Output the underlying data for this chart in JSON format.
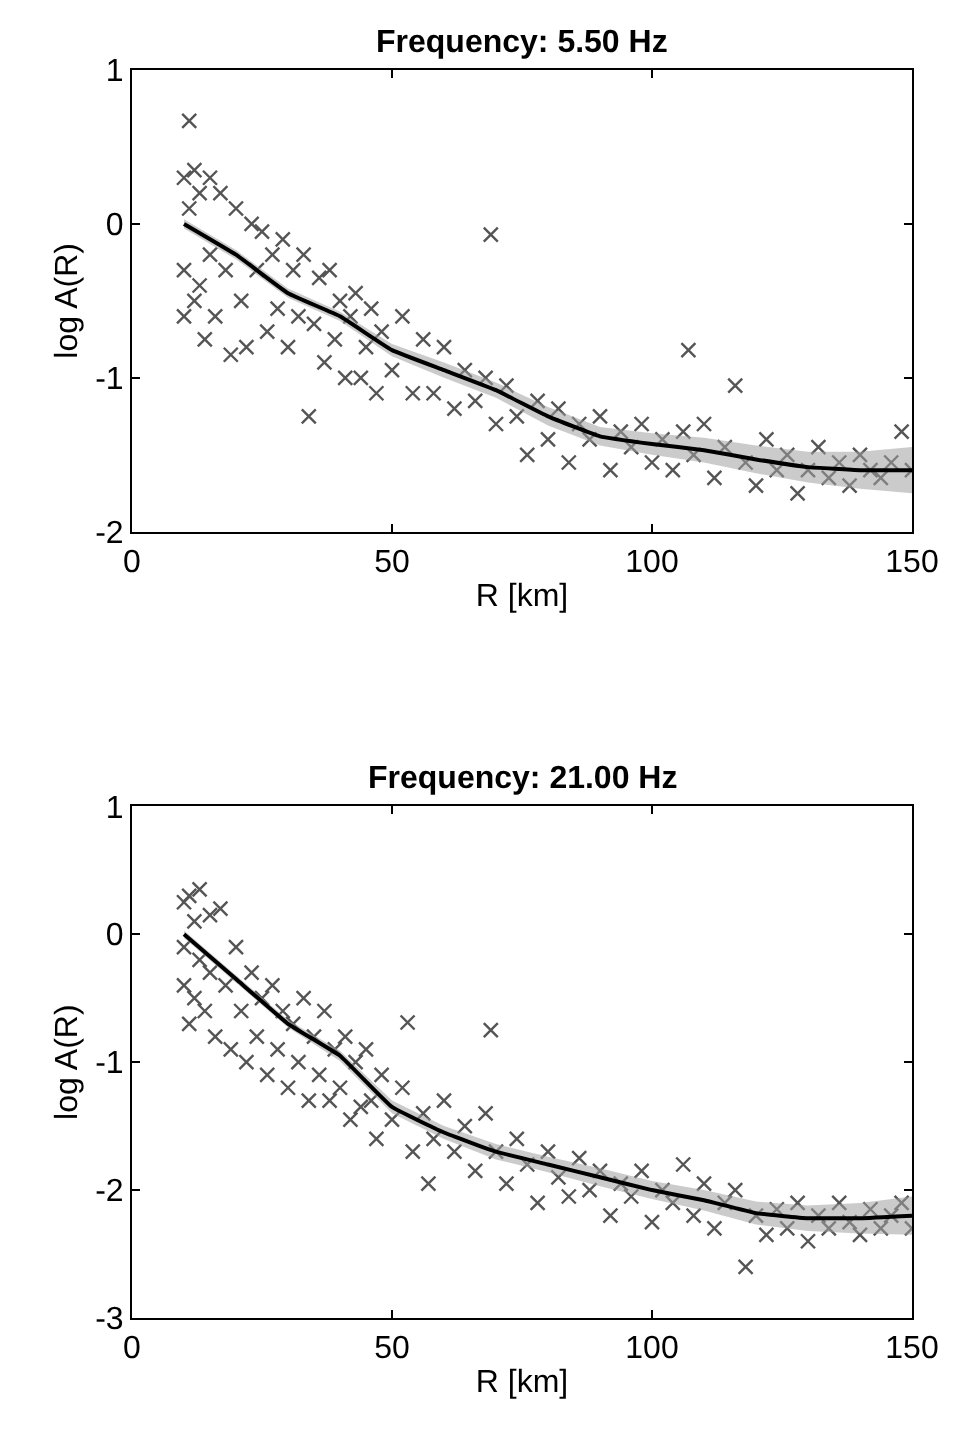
{
  "chart_data": [
    {
      "type": "scatter",
      "title": "Frequency: 5.50 Hz",
      "xlabel": "R [km]",
      "ylabel": "log A(R)",
      "xlim": [
        0,
        150
      ],
      "ylim": [
        -2,
        1
      ],
      "xticks": [
        0,
        50,
        100,
        150
      ],
      "yticks": [
        -2,
        -1,
        0,
        1
      ],
      "series": [
        {
          "marker": "cross",
          "color": "#555555",
          "x": [
            10,
            10,
            10,
            11,
            11,
            12,
            12,
            13,
            13,
            14,
            15,
            15,
            16,
            17,
            18,
            19,
            20,
            21,
            22,
            23,
            24,
            25,
            26,
            27,
            28,
            29,
            30,
            31,
            32,
            33,
            34,
            35,
            36,
            37,
            38,
            39,
            40,
            41,
            42,
            43,
            44,
            45,
            46,
            47,
            48,
            50,
            52,
            54,
            56,
            58,
            60,
            62,
            64,
            66,
            68,
            69,
            70,
            72,
            74,
            76,
            78,
            80,
            82,
            84,
            86,
            88,
            90,
            92,
            94,
            96,
            98,
            100,
            102,
            104,
            106,
            107,
            108,
            110,
            112,
            114,
            116,
            118,
            120,
            122,
            124,
            126,
            128,
            130,
            132,
            134,
            136,
            138,
            140,
            142,
            144,
            146,
            148,
            150
          ],
          "values": [
            0.3,
            -0.6,
            -0.3,
            0.67,
            0.1,
            0.35,
            -0.5,
            0.2,
            -0.4,
            -0.75,
            0.3,
            -0.2,
            -0.6,
            0.2,
            -0.3,
            -0.85,
            0.1,
            -0.5,
            -0.8,
            0.0,
            -0.3,
            -0.05,
            -0.7,
            -0.2,
            -0.55,
            -0.1,
            -0.8,
            -0.3,
            -0.6,
            -0.2,
            -1.25,
            -0.65,
            -0.35,
            -0.9,
            -0.3,
            -0.75,
            -0.5,
            -1.0,
            -0.6,
            -0.45,
            -1.0,
            -0.8,
            -0.55,
            -1.1,
            -0.7,
            -0.95,
            -0.6,
            -1.1,
            -0.75,
            -1.1,
            -0.8,
            -1.2,
            -0.95,
            -1.15,
            -1.0,
            -0.07,
            -1.3,
            -1.05,
            -1.25,
            -1.5,
            -1.15,
            -1.4,
            -1.2,
            -1.55,
            -1.3,
            -1.4,
            -1.25,
            -1.6,
            -1.35,
            -1.45,
            -1.3,
            -1.55,
            -1.4,
            -1.6,
            -1.35,
            -0.82,
            -1.5,
            -1.3,
            -1.65,
            -1.45,
            -1.05,
            -1.55,
            -1.7,
            -1.4,
            -1.6,
            -1.5,
            -1.75,
            -1.6,
            -1.45,
            -1.65,
            -1.55,
            -1.7,
            -1.5,
            -1.6,
            -1.65,
            -1.55,
            -1.35,
            -1.6
          ]
        },
        {
          "type": "line",
          "marker": "none",
          "line_style": "solid",
          "color": "#000000",
          "x": [
            10,
            20,
            30,
            40,
            50,
            60,
            70,
            80,
            90,
            100,
            110,
            120,
            130,
            140,
            150
          ],
          "values": [
            0,
            -0.2,
            -0.45,
            -0.6,
            -0.82,
            -0.95,
            -1.08,
            -1.25,
            -1.38,
            -1.43,
            -1.47,
            -1.53,
            -1.58,
            -1.6,
            -1.6
          ],
          "lower": [
            -0.03,
            -0.23,
            -0.48,
            -0.63,
            -0.86,
            -1.0,
            -1.13,
            -1.31,
            -1.44,
            -1.5,
            -1.55,
            -1.62,
            -1.68,
            -1.72,
            -1.75
          ],
          "upper": [
            0.03,
            -0.17,
            -0.42,
            -0.57,
            -0.78,
            -0.9,
            -1.03,
            -1.19,
            -1.32,
            -1.36,
            -1.39,
            -1.44,
            -1.48,
            -1.48,
            -1.45
          ]
        }
      ]
    },
    {
      "type": "scatter",
      "title": "Frequency: 21.00 Hz",
      "xlabel": "R [km]",
      "ylabel": "log A(R)",
      "xlim": [
        0,
        150
      ],
      "ylim": [
        -3,
        1
      ],
      "xticks": [
        0,
        50,
        100,
        150
      ],
      "yticks": [
        -3,
        -2,
        -1,
        0,
        1
      ],
      "series": [
        {
          "marker": "cross",
          "color": "#555555",
          "x": [
            10,
            10,
            10,
            11,
            11,
            12,
            12,
            13,
            13,
            14,
            15,
            15,
            16,
            17,
            18,
            19,
            20,
            21,
            22,
            23,
            24,
            25,
            26,
            27,
            28,
            29,
            30,
            31,
            32,
            33,
            34,
            35,
            36,
            37,
            38,
            39,
            40,
            41,
            42,
            43,
            44,
            45,
            46,
            47,
            48,
            50,
            52,
            53,
            54,
            56,
            57,
            58,
            60,
            62,
            64,
            66,
            68,
            69,
            70,
            72,
            74,
            76,
            78,
            80,
            82,
            84,
            86,
            88,
            90,
            92,
            94,
            96,
            98,
            100,
            102,
            104,
            106,
            108,
            110,
            112,
            114,
            116,
            118,
            120,
            122,
            124,
            126,
            128,
            130,
            132,
            134,
            136,
            138,
            140,
            142,
            144,
            146,
            148,
            150
          ],
          "values": [
            0.25,
            -0.4,
            -0.1,
            0.3,
            -0.7,
            0.1,
            -0.5,
            0.35,
            -0.2,
            -0.6,
            0.15,
            -0.3,
            -0.8,
            0.2,
            -0.4,
            -0.9,
            -0.1,
            -0.6,
            -1.0,
            -0.3,
            -0.8,
            -0.5,
            -1.1,
            -0.4,
            -0.9,
            -0.6,
            -1.2,
            -0.7,
            -1.0,
            -0.5,
            -1.3,
            -0.8,
            -1.1,
            -0.6,
            -1.3,
            -0.9,
            -1.2,
            -0.8,
            -1.45,
            -1.0,
            -1.35,
            -0.9,
            -1.3,
            -1.6,
            -1.1,
            -1.45,
            -1.2,
            -0.69,
            -1.7,
            -1.4,
            -1.95,
            -1.6,
            -1.3,
            -1.7,
            -1.5,
            -1.85,
            -1.4,
            -0.75,
            -1.7,
            -1.95,
            -1.6,
            -1.8,
            -2.1,
            -1.7,
            -1.9,
            -2.05,
            -1.75,
            -2.0,
            -1.85,
            -2.2,
            -1.95,
            -2.05,
            -1.85,
            -2.25,
            -2.0,
            -2.1,
            -1.8,
            -2.2,
            -1.95,
            -2.3,
            -2.1,
            -2.0,
            -2.6,
            -2.2,
            -2.35,
            -2.15,
            -2.3,
            -2.1,
            -2.4,
            -2.2,
            -2.3,
            -2.1,
            -2.25,
            -2.35,
            -2.15,
            -2.3,
            -2.2,
            -2.1,
            -2.3
          ]
        },
        {
          "type": "line",
          "marker": "none",
          "line_style": "solid",
          "color": "#000000",
          "x": [
            10,
            20,
            30,
            40,
            50,
            60,
            70,
            80,
            90,
            100,
            110,
            120,
            130,
            140,
            150
          ],
          "values": [
            0,
            -0.35,
            -0.7,
            -0.95,
            -1.35,
            -1.55,
            -1.7,
            -1.8,
            -1.9,
            -2.0,
            -2.08,
            -2.18,
            -2.22,
            -2.22,
            -2.2
          ],
          "lower": [
            -0.03,
            -0.38,
            -0.73,
            -0.99,
            -1.4,
            -1.6,
            -1.76,
            -1.86,
            -1.97,
            -2.07,
            -2.16,
            -2.27,
            -2.32,
            -2.34,
            -2.35
          ],
          "upper": [
            0.03,
            -0.32,
            -0.67,
            -0.91,
            -1.3,
            -1.5,
            -1.64,
            -1.74,
            -1.83,
            -1.93,
            -2.0,
            -2.09,
            -2.12,
            -2.1,
            -2.05
          ]
        }
      ]
    }
  ]
}
